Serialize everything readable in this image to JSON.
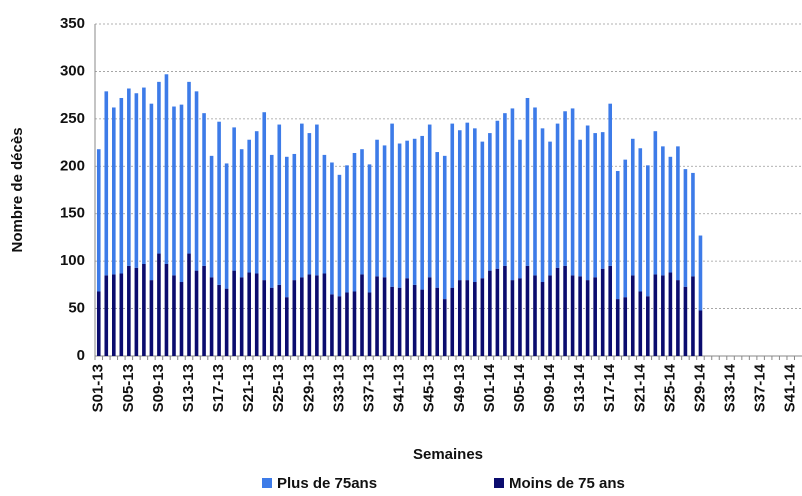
{
  "chart_data": {
    "type": "stacked_bar",
    "y_label": "Nombre de décès",
    "x_label": "Semaines",
    "categories": [
      "S01-13",
      null,
      null,
      null,
      "S05-13",
      null,
      null,
      null,
      "S09-13",
      null,
      null,
      null,
      "S13-13",
      null,
      null,
      null,
      "S17-13",
      null,
      null,
      null,
      "S21-13",
      null,
      null,
      null,
      "S25-13",
      null,
      null,
      null,
      "S29-13",
      null,
      null,
      null,
      "S33-13",
      null,
      null,
      null,
      "S37-13",
      null,
      null,
      null,
      "S41-13",
      null,
      null,
      null,
      "S45-13",
      null,
      null,
      null,
      "S49-13",
      null,
      null,
      null,
      "S01-14",
      null,
      null,
      null,
      "S05-14",
      null,
      null,
      null,
      "S09-14",
      null,
      null,
      null,
      "S13-14",
      null,
      null,
      null,
      "S17-14",
      null,
      null,
      null,
      "S21-14",
      null,
      null,
      null,
      "S25-14",
      null,
      null,
      null,
      "S29-14",
      null,
      null,
      null,
      "S33-14",
      null,
      null,
      null,
      "S37-14",
      null,
      null,
      null,
      "S41-14",
      null
    ],
    "series": [
      {
        "name": "Moins de 75 ans",
        "color": "#0b0c6e",
        "values": [
          68,
          85,
          86,
          87,
          95,
          93,
          97,
          80,
          108,
          97,
          85,
          78,
          108,
          90,
          95,
          83,
          75,
          71,
          90,
          83,
          88,
          87,
          80,
          72,
          75,
          62,
          80,
          83,
          86,
          85,
          87,
          65,
          63,
          67,
          68,
          86,
          67,
          84,
          83,
          73,
          72,
          82,
          75,
          70,
          83,
          72,
          60,
          72,
          80,
          80,
          78,
          82,
          90,
          92,
          95,
          80,
          82,
          95,
          85,
          78,
          85,
          93,
          95,
          85,
          84,
          80,
          83,
          92,
          95,
          60,
          62,
          85,
          68,
          63,
          86,
          85,
          88,
          80,
          73,
          84,
          48,
          null,
          null,
          null,
          null,
          null,
          null,
          null,
          null,
          null,
          null,
          null,
          null,
          null
        ]
      },
      {
        "name": "Plus de 75ans",
        "color": "#3d7be8",
        "values": [
          150,
          194,
          176,
          185,
          187,
          184,
          186,
          186,
          181,
          200,
          178,
          187,
          181,
          189,
          161,
          128,
          172,
          132,
          151,
          135,
          140,
          150,
          177,
          140,
          169,
          148,
          133,
          162,
          149,
          159,
          125,
          139,
          128,
          134,
          146,
          132,
          135,
          144,
          139,
          172,
          152,
          145,
          154,
          162,
          161,
          143,
          151,
          173,
          158,
          166,
          162,
          144,
          145,
          156,
          161,
          181,
          146,
          177,
          177,
          162,
          141,
          152,
          163,
          176,
          144,
          163,
          152,
          144,
          171,
          135,
          145,
          144,
          151,
          138,
          151,
          136,
          122,
          141,
          124,
          109,
          79,
          null,
          null,
          null,
          null,
          null,
          null,
          null,
          null,
          null,
          null,
          null,
          null,
          null
        ]
      }
    ],
    "ylim": [
      0,
      350
    ],
    "yticks": [
      0,
      50,
      100,
      150,
      200,
      250,
      300,
      350
    ],
    "grid": true,
    "legend": "bottom"
  }
}
